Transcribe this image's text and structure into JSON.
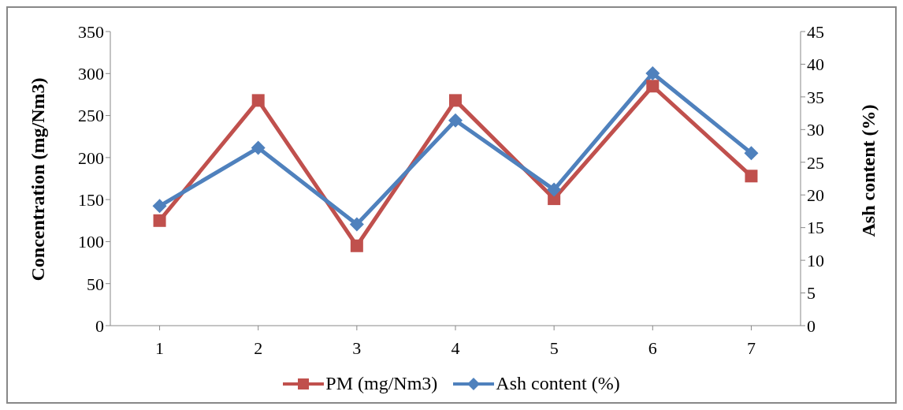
{
  "chart_data": {
    "type": "line",
    "categories": [
      "1",
      "2",
      "3",
      "4",
      "5",
      "6",
      "7"
    ],
    "ylabel": "Concentration (mg/Nm3)",
    "y2label": "Ash content (%)",
    "ylim": [
      0,
      350
    ],
    "yticks": [
      0,
      50,
      100,
      150,
      200,
      250,
      300,
      350
    ],
    "y2lim": [
      0,
      45
    ],
    "y2ticks": [
      0,
      5,
      10,
      15,
      20,
      25,
      30,
      35,
      40,
      45
    ],
    "grid": false,
    "legend": "bottom",
    "series": [
      {
        "name": "PM (mg/Nm3)",
        "color": "#c0504d",
        "marker": "square",
        "values": [
          125,
          268,
          95,
          268,
          151,
          285,
          178
        ]
      },
      {
        "name": "Ash content (%)",
        "color": "#4f81bd",
        "marker": "diamond",
        "axis": "y2",
        "values": [
          18.3,
          27.2,
          15.5,
          31.4,
          20.8,
          38.6,
          26.4
        ]
      }
    ]
  }
}
